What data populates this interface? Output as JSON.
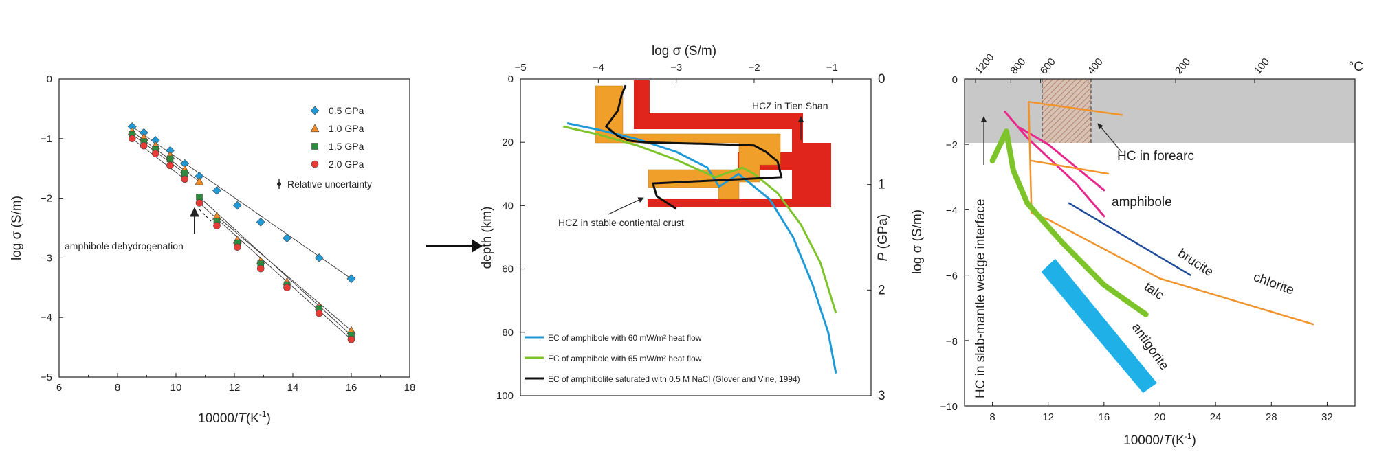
{
  "figure": {
    "arrow_between_panels": "right-arrow-icon"
  },
  "chart_data": [
    {
      "panel": "a",
      "type": "scatter",
      "xlabel_prefix": "10000/",
      "xlabel_var": "T",
      "xlabel_unit": "(K",
      "xlabel_exp": "-1",
      "xlabel_close": ")",
      "ylabel": "log σ (S/m)",
      "xlim": [
        6,
        18
      ],
      "ylim": [
        -5,
        0
      ],
      "xticks": [
        6,
        8,
        10,
        12,
        14,
        16,
        18
      ],
      "yticks": [
        0,
        -1,
        -2,
        -3,
        -4,
        -5
      ],
      "grid": false,
      "legend_position": "top-right",
      "series": [
        {
          "name": "0.5 GPa",
          "marker": "diamond",
          "color": "#1f9ad6",
          "x": [
            8.5,
            8.9,
            9.3,
            9.8,
            10.3,
            10.8,
            11.4,
            12.1,
            12.9,
            13.8,
            14.9,
            16.0
          ],
          "y": [
            -0.8,
            -0.9,
            -1.03,
            -1.2,
            -1.42,
            -1.63,
            -1.87,
            -2.12,
            -2.4,
            -2.67,
            -3.0,
            -3.35
          ]
        },
        {
          "name": "1.0 GPa",
          "marker": "triangle",
          "color": "#f08a2c",
          "x": [
            8.5,
            8.9,
            9.3,
            9.8,
            10.3,
            10.8,
            11.4,
            12.1,
            12.9,
            13.8,
            14.9,
            16.0
          ],
          "y": [
            -0.88,
            -0.98,
            -1.12,
            -1.28,
            -1.52,
            -1.72,
            -2.3,
            -2.7,
            -3.05,
            -3.4,
            -3.82,
            -4.22
          ]
        },
        {
          "name": "1.5 GPa",
          "marker": "square",
          "color": "#2e8b3d",
          "x": [
            8.5,
            8.9,
            9.3,
            9.8,
            10.3,
            10.8,
            11.4,
            12.1,
            12.9,
            13.8,
            14.9,
            16.0
          ],
          "y": [
            -0.93,
            -1.05,
            -1.18,
            -1.34,
            -1.58,
            -1.98,
            -2.38,
            -2.75,
            -3.1,
            -3.45,
            -3.85,
            -4.3
          ]
        },
        {
          "name": "2.0 GPa",
          "marker": "circle",
          "color": "#e83b36",
          "x": [
            8.5,
            8.9,
            9.3,
            9.8,
            10.3,
            10.8,
            11.4,
            12.1,
            12.9,
            13.8,
            14.9,
            16.0
          ],
          "y": [
            -1.0,
            -1.12,
            -1.25,
            -1.45,
            -1.68,
            -2.08,
            -2.46,
            -2.82,
            -3.18,
            -3.5,
            -3.93,
            -4.37
          ]
        }
      ],
      "errorbar_label": "Relative uncertainty",
      "annotation": "amphibole dehydrogenation"
    },
    {
      "panel": "b",
      "type": "line",
      "top_xlabel": "log σ (S/m)",
      "ylabel": "depth (km)",
      "right_ylabel_var": "P",
      "right_ylabel_unit": " (GPa)",
      "xlim": [
        -5,
        -0.5
      ],
      "ylim": [
        0,
        100
      ],
      "xticks": [
        -5,
        -4,
        -3,
        -2,
        -1
      ],
      "yticks": [
        0,
        20,
        40,
        60,
        80,
        100
      ],
      "right_yticks": [
        0,
        1,
        2,
        3
      ],
      "grid": false,
      "legend_position": "bottom-left",
      "series": [
        {
          "name": "EC of amphibole with 60  mW/m² heat flow",
          "color": "#1f9ad6",
          "x": [
            -4.4,
            -4.0,
            -3.5,
            -3.0,
            -2.6,
            -2.45,
            -2.2,
            -1.8,
            -1.5,
            -1.25,
            -1.05,
            -0.95
          ],
          "y": [
            14,
            16,
            19,
            23,
            28,
            34,
            30,
            38,
            50,
            65,
            80,
            93
          ]
        },
        {
          "name": "EC of amphibole with 65 mW/m² heat flow",
          "color": "#7cc42a",
          "x": [
            -4.45,
            -4.0,
            -3.5,
            -3.0,
            -2.5,
            -2.15,
            -2.0,
            -1.7,
            -1.4,
            -1.15,
            -0.95
          ],
          "y": [
            15,
            17.5,
            21,
            25.5,
            31,
            28,
            30,
            36,
            46,
            58,
            74
          ]
        },
        {
          "name": "EC of amphibolite saturated with 0.5 M NaCl (Glover and Vine, 1994)",
          "color": "#111111",
          "x": [
            -3.65,
            -3.7,
            -3.75,
            -3.9,
            -3.75,
            -3.6,
            -3.4,
            -2.6,
            -2.0,
            -1.85,
            -1.7,
            -1.65,
            -3.3,
            -3.25,
            -3.0
          ],
          "y": [
            2,
            5,
            10,
            15,
            18,
            19.5,
            20,
            20.5,
            21,
            23,
            26,
            31,
            33,
            37,
            41
          ]
        }
      ],
      "annotations": [
        "HCZ in Tien Shan",
        "HCZ in stable contiental crust"
      ]
    },
    {
      "panel": "c",
      "type": "line",
      "xlabel_prefix": "10000/",
      "xlabel_var": "T",
      "xlabel_unit": "(K",
      "xlabel_exp": "-1",
      "xlabel_close": ")",
      "ylabel": "log σ (S/m)",
      "top_unit": "°C",
      "xlim": [
        6,
        34
      ],
      "ylim": [
        -10,
        0
      ],
      "xticks": [
        8,
        12,
        16,
        20,
        24,
        28,
        32
      ],
      "yticks": [
        0,
        -2,
        -4,
        -6,
        -8,
        -10
      ],
      "top_ticks": [
        1200,
        800,
        600,
        400,
        200,
        100
      ],
      "grid": false,
      "series": [
        {
          "name": "amphibole",
          "color": "#e8288c",
          "width": 3,
          "x": [
            8.9,
            10.5,
            12.5,
            14.0,
            16.0
          ],
          "y": [
            -1.0,
            -1.8,
            -2.6,
            -3.2,
            -4.2
          ]
        },
        {
          "name": "",
          "color": "#e8288c",
          "width": 3,
          "x": [
            10.0,
            12.0,
            14.0,
            16.0
          ],
          "y": [
            -1.5,
            -2.0,
            -2.7,
            -3.4
          ]
        },
        {
          "name": "brucite",
          "color": "#1f4c9a",
          "width": 2.5,
          "x": [
            13.5,
            22.2
          ],
          "y": [
            -3.8,
            -6.0
          ]
        },
        {
          "name": "chlorite",
          "color": "#f0932b",
          "width": 2.5,
          "x": [
            10.6,
            10.8,
            12.0,
            20.0,
            31.0
          ],
          "y": [
            -0.7,
            -4.1,
            -4.3,
            -6.1,
            -7.5
          ]
        },
        {
          "name": "",
          "color": "#f0932b",
          "width": 2.5,
          "x": [
            10.6,
            17.3
          ],
          "y": [
            -0.7,
            -1.1
          ]
        },
        {
          "name": "",
          "color": "#f0932b",
          "width": 2.5,
          "x": [
            10.8,
            16.3
          ],
          "y": [
            -2.5,
            -2.9
          ]
        },
        {
          "name": "talc",
          "color": "#7cc42a",
          "width": 8,
          "x": [
            8.0,
            9.0,
            9.5,
            10.5,
            13.0,
            16.0,
            19.0
          ],
          "y": [
            -2.5,
            -1.6,
            -2.8,
            -3.8,
            -5.0,
            -6.3,
            -7.2
          ]
        }
      ],
      "band": {
        "name": "antigorite",
        "color": "#1fb0e8",
        "x_upper": [
          12.5,
          19.8
        ],
        "y_upper": [
          -5.5,
          -9.3
        ],
        "x_lower": [
          11.5,
          18.8
        ],
        "y_lower": [
          -5.9,
          -9.6
        ]
      },
      "annotations": [
        "HC in forearc",
        "HC in slab-mantle wedge interface"
      ]
    }
  ]
}
